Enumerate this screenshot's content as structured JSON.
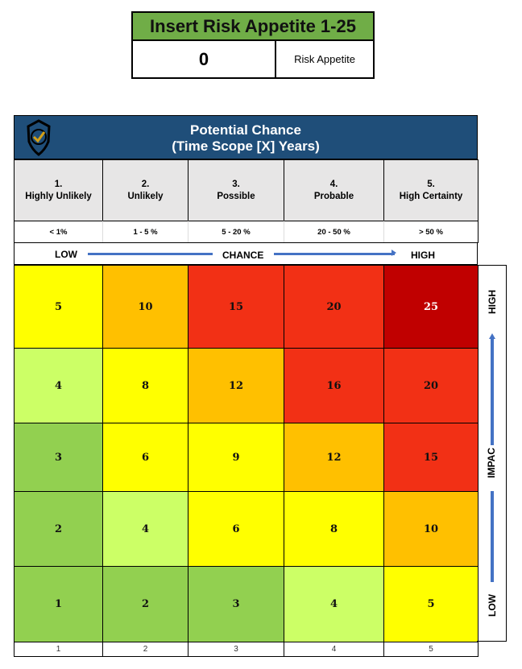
{
  "appetite": {
    "title": "Insert Risk Appetite 1-25",
    "value": "0",
    "label": "Risk Appetite"
  },
  "matrix": {
    "title_line1": "Potential Chance",
    "title_line2": "(Time Scope [X] Years)",
    "logo": "shield-check-logo",
    "columns": [
      {
        "num": "1.",
        "label": "Highly Unlikely",
        "pct": "< 1%"
      },
      {
        "num": "2.",
        "label": "Unlikely",
        "pct": "1 - 5 %"
      },
      {
        "num": "3.",
        "label": "Possible",
        "pct": "5 - 20 %"
      },
      {
        "num": "4.",
        "label": "Probable",
        "pct": "20 - 50 %"
      },
      {
        "num": "5.",
        "label": "High Certainty",
        "pct": "> 50 %"
      }
    ],
    "chance_axis": {
      "low": "LOW",
      "mid": "CHANCE",
      "high": "HIGH"
    },
    "impact_axis": {
      "low": "LOW",
      "mid": "IMPAC",
      "high": "HIGH"
    },
    "rows": [
      [
        "5",
        "10",
        "15",
        "20",
        "25"
      ],
      [
        "4",
        "8",
        "12",
        "16",
        "20"
      ],
      [
        "3",
        "6",
        "9",
        "12",
        "15"
      ],
      [
        "2",
        "4",
        "6",
        "8",
        "10"
      ],
      [
        "1",
        "2",
        "3",
        "4",
        "5"
      ]
    ],
    "row_colors": [
      [
        "#FFFF00",
        "#FFC000",
        "#F23015",
        "#F23015",
        "#C00000"
      ],
      [
        "#CCFF66",
        "#FFFF00",
        "#FFC000",
        "#F23015",
        "#F23015"
      ],
      [
        "#92D050",
        "#FFFF00",
        "#FFFF00",
        "#FFC000",
        "#F23015"
      ],
      [
        "#92D050",
        "#CCFF66",
        "#FFFF00",
        "#FFFF00",
        "#FFC000"
      ],
      [
        "#92D050",
        "#92D050",
        "#92D050",
        "#CCFF66",
        "#FFFF00"
      ]
    ],
    "footer": [
      "1",
      "2",
      "3",
      "4",
      "5"
    ]
  }
}
